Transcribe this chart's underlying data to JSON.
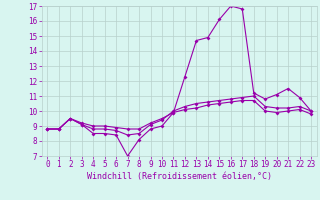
{
  "xlabel": "Windchill (Refroidissement éolien,°C)",
  "x": [
    0,
    1,
    2,
    3,
    4,
    5,
    6,
    7,
    8,
    9,
    10,
    11,
    12,
    13,
    14,
    15,
    16,
    17,
    18,
    19,
    20,
    21,
    22,
    23
  ],
  "line1": [
    8.8,
    8.8,
    9.5,
    9.1,
    8.5,
    8.5,
    8.4,
    7.0,
    8.1,
    8.8,
    9.0,
    9.9,
    12.3,
    14.7,
    14.9,
    16.1,
    17.0,
    16.8,
    11.2,
    10.8,
    11.1,
    11.5,
    10.9,
    10.0
  ],
  "line2": [
    8.8,
    8.8,
    9.5,
    9.1,
    8.8,
    8.8,
    8.7,
    8.4,
    8.5,
    9.1,
    9.4,
    10.0,
    10.3,
    10.5,
    10.6,
    10.7,
    10.8,
    10.9,
    11.0,
    10.3,
    10.2,
    10.2,
    10.3,
    10.0
  ],
  "line3": [
    8.8,
    8.8,
    9.5,
    9.2,
    9.0,
    9.0,
    8.9,
    8.8,
    8.8,
    9.2,
    9.5,
    9.9,
    10.1,
    10.2,
    10.4,
    10.5,
    10.6,
    10.7,
    10.7,
    10.0,
    9.9,
    10.0,
    10.1,
    9.8
  ],
  "line_color": "#9900aa",
  "bg_color": "#d8f5f0",
  "grid_color": "#b8d0cc",
  "ylim": [
    7,
    17
  ],
  "xlim_min": -0.5,
  "xlim_max": 23.5,
  "yticks": [
    7,
    8,
    9,
    10,
    11,
    12,
    13,
    14,
    15,
    16,
    17
  ],
  "xticks": [
    0,
    1,
    2,
    3,
    4,
    5,
    6,
    7,
    8,
    9,
    10,
    11,
    12,
    13,
    14,
    15,
    16,
    17,
    18,
    19,
    20,
    21,
    22,
    23
  ],
  "tick_fontsize": 5.5,
  "xlabel_fontsize": 6.0,
  "marker_size": 2.0,
  "line_width": 0.8
}
